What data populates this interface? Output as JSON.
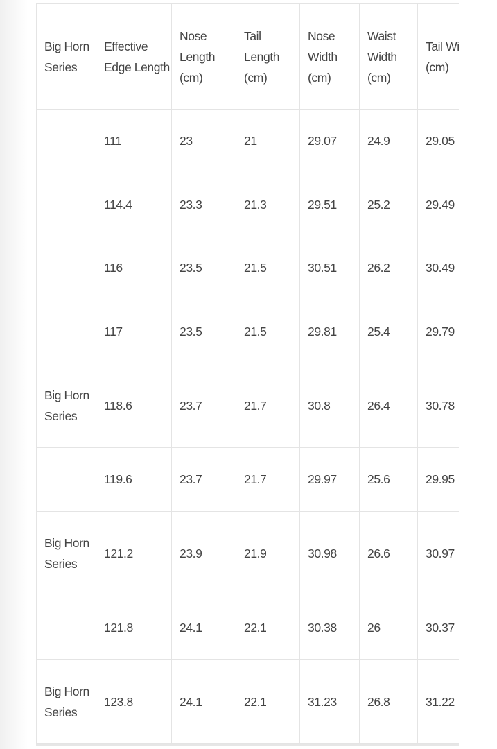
{
  "table": {
    "header": [
      "Big Horn Series",
      "Effective Edge Length",
      "Nose Length (cm)",
      "Tail Length (cm)",
      "Nose Width (cm)",
      "Waist Width (cm)",
      "Tail Width (cm)"
    ],
    "rows": [
      [
        null,
        111,
        23,
        21,
        29.07,
        24.9,
        29.05
      ],
      [
        null,
        114.4,
        23.3,
        21.3,
        29.51,
        25.2,
        29.49
      ],
      [
        null,
        116,
        23.5,
        21.5,
        30.51,
        26.2,
        30.49
      ],
      [
        null,
        117,
        23.5,
        21.5,
        29.81,
        25.4,
        29.79
      ],
      [
        "Big Horn Series",
        118.6,
        23.7,
        21.7,
        30.8,
        26.4,
        30.78
      ],
      [
        null,
        119.6,
        23.7,
        21.7,
        29.97,
        25.6,
        29.95
      ],
      [
        "Big Horn Series",
        121.2,
        23.9,
        21.9,
        30.98,
        26.6,
        30.97
      ],
      [
        null,
        121.8,
        24.1,
        22.1,
        30.38,
        26,
        30.37
      ],
      [
        "Big Horn Series",
        123.8,
        24.1,
        22.1,
        31.23,
        26.8,
        31.22
      ]
    ]
  }
}
